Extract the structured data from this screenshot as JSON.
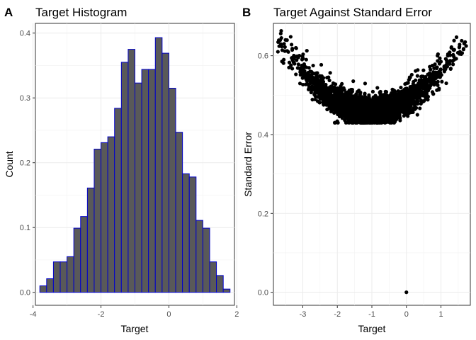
{
  "chart_data": [
    {
      "panel_tag": "A",
      "type": "bar",
      "title": "Target Histogram",
      "xlabel": "Target",
      "ylabel": "Count",
      "xlim": [
        -3.93,
        1.93
      ],
      "ylim": [
        -0.02,
        0.415
      ],
      "xticks": [
        -4,
        -2,
        0,
        2
      ],
      "xtick_labels": [
        "-4",
        "-2",
        "0",
        "2"
      ],
      "yticks": [
        0,
        0.1,
        0.2,
        0.3,
        0.4
      ],
      "ytick_labels": [
        "0.0",
        "0.1",
        "0.2",
        "0.3",
        "0.4"
      ],
      "grid": true,
      "bar_fill": "#595959",
      "bar_outline": "#0000cc",
      "bin_width": 0.2,
      "bins_start": [
        -3.8,
        -3.6,
        -3.4,
        -3.2,
        -3.0,
        -2.8,
        -2.6,
        -2.4,
        -2.2,
        -2.0,
        -1.8,
        -1.6,
        -1.4,
        -1.2,
        -1.0,
        -0.8,
        -0.6,
        -0.4,
        -0.2,
        0.0,
        0.2,
        0.4,
        0.6,
        0.8,
        1.0,
        1.2,
        1.4,
        1.6
      ],
      "values": [
        0.01,
        0.021,
        0.047,
        0.047,
        0.055,
        0.099,
        0.117,
        0.161,
        0.221,
        0.231,
        0.24,
        0.284,
        0.355,
        0.375,
        0.323,
        0.344,
        0.344,
        0.393,
        0.369,
        0.315,
        0.247,
        0.183,
        0.178,
        0.111,
        0.099,
        0.047,
        0.026,
        0.005
      ]
    },
    {
      "panel_tag": "B",
      "type": "scatter",
      "title": "Target Against Standard Error",
      "xlabel": "Target",
      "ylabel": "Standard Error",
      "xlim": [
        -3.85,
        1.85
      ],
      "ylim": [
        -0.033,
        0.682
      ],
      "xticks": [
        -3,
        -2,
        -1,
        0,
        1
      ],
      "xtick_labels": [
        "-3",
        "-2",
        "-1",
        "0",
        "1"
      ],
      "yticks": [
        0,
        0.2,
        0.4,
        0.6
      ],
      "ytick_labels": [
        "0.0",
        "0.2",
        "0.4",
        "0.6"
      ],
      "grid": true,
      "point_color": "#000000",
      "n_points": 2834,
      "trend": {
        "vertex_x": -1.0,
        "min_se": 0.46,
        "curvature": 0.025,
        "noise_sd": 0.018
      },
      "points": [
        [
          0.0,
          0.0
        ],
        [
          -3.62,
          0.645
        ],
        [
          -3.5,
          0.64
        ],
        [
          -3.35,
          0.648
        ],
        [
          -3.2,
          0.62
        ],
        [
          -3.72,
          0.61
        ],
        [
          -3.55,
          0.59
        ],
        [
          -3.1,
          0.6
        ],
        [
          -2.9,
          0.59
        ],
        [
          -2.7,
          0.575
        ],
        [
          -3.4,
          0.57
        ],
        [
          1.45,
          0.647
        ],
        [
          1.6,
          0.638
        ],
        [
          1.3,
          0.62
        ],
        [
          1.55,
          0.61
        ],
        [
          1.2,
          0.6
        ],
        [
          0.9,
          0.6
        ],
        [
          1.0,
          0.585
        ],
        [
          0.75,
          0.575
        ],
        [
          1.35,
          0.578
        ],
        [
          1.1,
          0.565
        ]
      ]
    }
  ]
}
